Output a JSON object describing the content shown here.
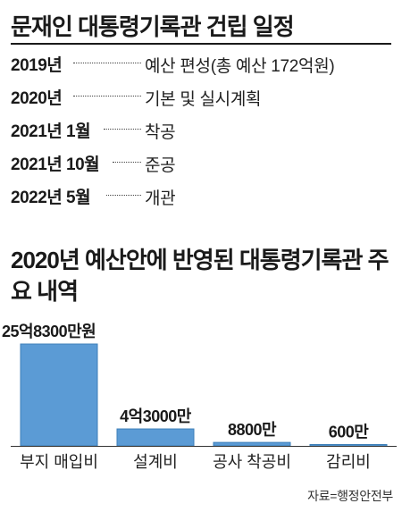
{
  "schedule": {
    "title": "문재인 대통령기록관 건립 일정",
    "items": [
      {
        "date": "2019년",
        "event": "예산 편성(총 예산 172억원)"
      },
      {
        "date": "2020년",
        "event": "기본 및 실시계획"
      },
      {
        "date": "2021년 1월",
        "event": "착공"
      },
      {
        "date": "2021년 10월",
        "event": "준공"
      },
      {
        "date": "2022년 5월",
        "event": "개관"
      }
    ]
  },
  "chart_data": {
    "type": "bar",
    "title": "2020년 예산안에 반영된 대통령기록관 주요 내역",
    "categories": [
      "부지 매입비",
      "설계비",
      "공사 착공비",
      "감리비"
    ],
    "values": [
      258300,
      43000,
      8800,
      600
    ],
    "value_unit": "만원",
    "data_labels": [
      "25억8300만원",
      "4억3000만",
      "8800만",
      "600만"
    ],
    "bar_color": "#5b9bd5",
    "bar_edge_color": "#3d7fb9",
    "grid": false,
    "legend": "none"
  },
  "source": "자료=행정안전부"
}
